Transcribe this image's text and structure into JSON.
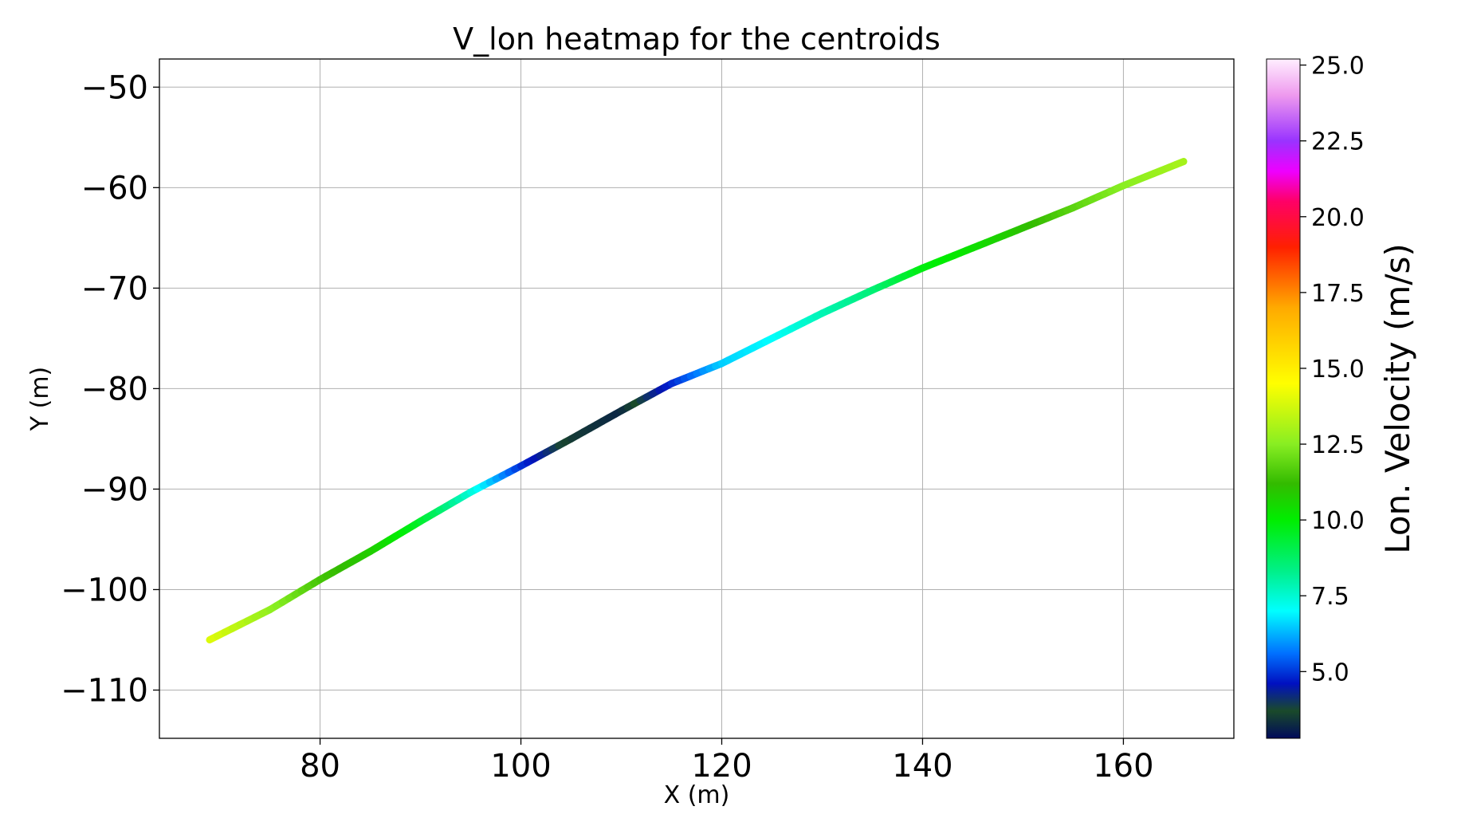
{
  "chart_data": {
    "type": "line",
    "title": "V_lon heatmap for the centroids",
    "xlabel": "X (m)",
    "ylabel": "Y (m)",
    "xlim": [
      64,
      171
    ],
    "ylim": [
      -114.8,
      -47.2
    ],
    "grid": true,
    "x_ticks": [
      80,
      100,
      120,
      140,
      160
    ],
    "x_tick_labels": [
      "80",
      "100",
      "120",
      "140",
      "160"
    ],
    "y_ticks": [
      -50,
      -60,
      -70,
      -80,
      -90,
      -100,
      -110
    ],
    "y_tick_labels": [
      "−50",
      "−60",
      "−70",
      "−80",
      "−90",
      "−100",
      "−110"
    ],
    "series": [
      {
        "x": [
          69,
          75,
          80,
          85,
          90,
          95,
          100,
          105,
          110,
          115,
          120,
          125,
          130,
          135,
          140,
          145,
          150,
          155,
          160,
          166
        ],
        "y": [
          -105.0,
          -102.0,
          -99.0,
          -96.2,
          -93.2,
          -90.3,
          -87.7,
          -85.0,
          -82.2,
          -79.5,
          -77.5,
          -75.0,
          -72.5,
          -70.2,
          -68.0,
          -66.0,
          -64.0,
          -62.0,
          -59.8,
          -57.4
        ],
        "v_lon": [
          14.0,
          12.7,
          11.5,
          10.8,
          9.5,
          7.5,
          5.0,
          3.5,
          3.2,
          4.8,
          6.5,
          7.0,
          7.8,
          8.5,
          9.8,
          10.3,
          11.0,
          11.8,
          12.5,
          13.0
        ]
      }
    ],
    "colorbar": {
      "label": "Lon. Velocity (m/s)",
      "range": [
        2.8,
        25.2
      ],
      "ticks": [
        5.0,
        7.5,
        10.0,
        12.5,
        15.0,
        17.5,
        20.0,
        22.5,
        25.0
      ],
      "tick_labels": [
        "5.0",
        "7.5",
        "10.0",
        "12.5",
        "15.0",
        "17.5",
        "20.0",
        "22.5",
        "25.0"
      ],
      "colormap": [
        {
          "value": 2.8,
          "color": "#000a5a"
        },
        {
          "value": 3.7,
          "color": "#1a4a2a"
        },
        {
          "value": 4.6,
          "color": "#0010c0"
        },
        {
          "value": 5.6,
          "color": "#0070ff"
        },
        {
          "value": 7.0,
          "color": "#00ffff"
        },
        {
          "value": 8.3,
          "color": "#00f08a"
        },
        {
          "value": 10.0,
          "color": "#00ee00"
        },
        {
          "value": 11.2,
          "color": "#33bb00"
        },
        {
          "value": 12.5,
          "color": "#88ee22"
        },
        {
          "value": 14.5,
          "color": "#ffff00"
        },
        {
          "value": 17.0,
          "color": "#ffaa00"
        },
        {
          "value": 19.0,
          "color": "#ff2000"
        },
        {
          "value": 20.5,
          "color": "#ff0066"
        },
        {
          "value": 21.5,
          "color": "#ee00ff"
        },
        {
          "value": 22.5,
          "color": "#9933ff"
        },
        {
          "value": 24.0,
          "color": "#ee99ee"
        },
        {
          "value": 25.2,
          "color": "#ffeeff"
        }
      ]
    }
  }
}
